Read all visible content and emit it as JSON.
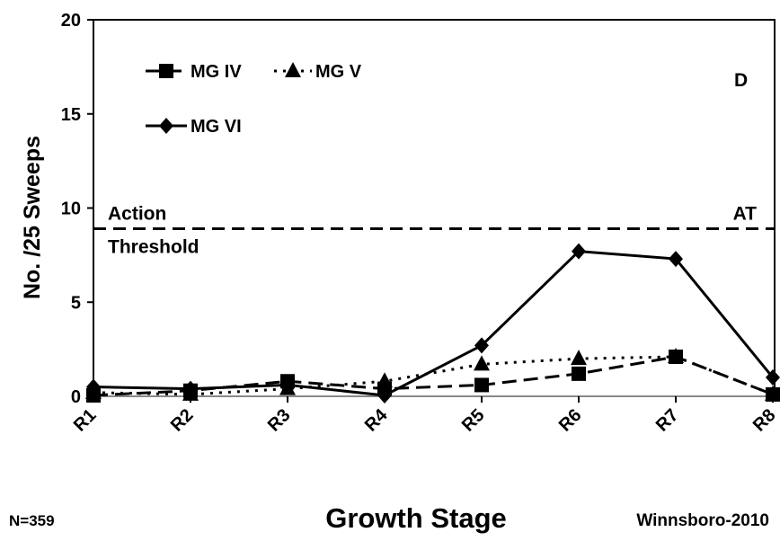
{
  "chart_data": {
    "type": "line",
    "categories": [
      "R1",
      "R2",
      "R3",
      "R4",
      "R5",
      "R6",
      "R7",
      "R8"
    ],
    "series": [
      {
        "name": "MG IV",
        "values": [
          0.05,
          0.3,
          0.8,
          0.4,
          0.6,
          1.2,
          2.1,
          0.1
        ],
        "marker": "square",
        "dash": "long-dash"
      },
      {
        "name": "MG V",
        "values": [
          0.2,
          0.1,
          0.4,
          0.8,
          1.7,
          2.0,
          2.1,
          0.1
        ],
        "marker": "triangle",
        "dash": "dotted"
      },
      {
        "name": "MG VI",
        "values": [
          0.5,
          0.4,
          0.6,
          0.05,
          2.7,
          7.7,
          7.3,
          1.0
        ],
        "marker": "diamond",
        "dash": "solid"
      }
    ],
    "ylabel": "No. /25 Sweeps",
    "xlabel": "Growth Stage",
    "ylim": [
      0,
      20
    ],
    "yticks": [
      0,
      5,
      10,
      15,
      20
    ],
    "threshold": {
      "value": 8.9,
      "label_top": "Action",
      "label_bottom": "Threshold",
      "right_label": "AT"
    },
    "panel_label": "D",
    "legend_position": "top-left",
    "grid": false
  },
  "footer": {
    "left": "N=359",
    "right": "Winnsboro-2010"
  }
}
